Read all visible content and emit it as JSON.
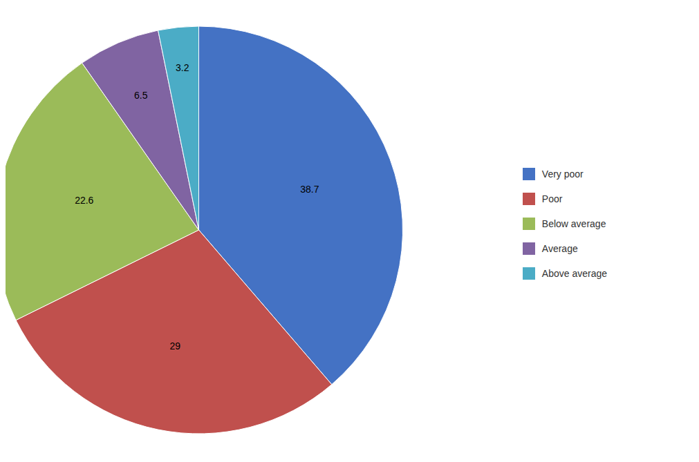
{
  "chart_data": {
    "type": "pie",
    "categories": [
      "Very poor",
      "Poor",
      "Below average",
      "Average",
      "Above average"
    ],
    "values": [
      38.7,
      29.0,
      22.6,
      6.5,
      3.2
    ],
    "colors": [
      "#4472C4",
      "#C0504D",
      "#9BBB59",
      "#8064A2",
      "#4BACC6"
    ],
    "data_labels": true,
    "legend": "right"
  }
}
